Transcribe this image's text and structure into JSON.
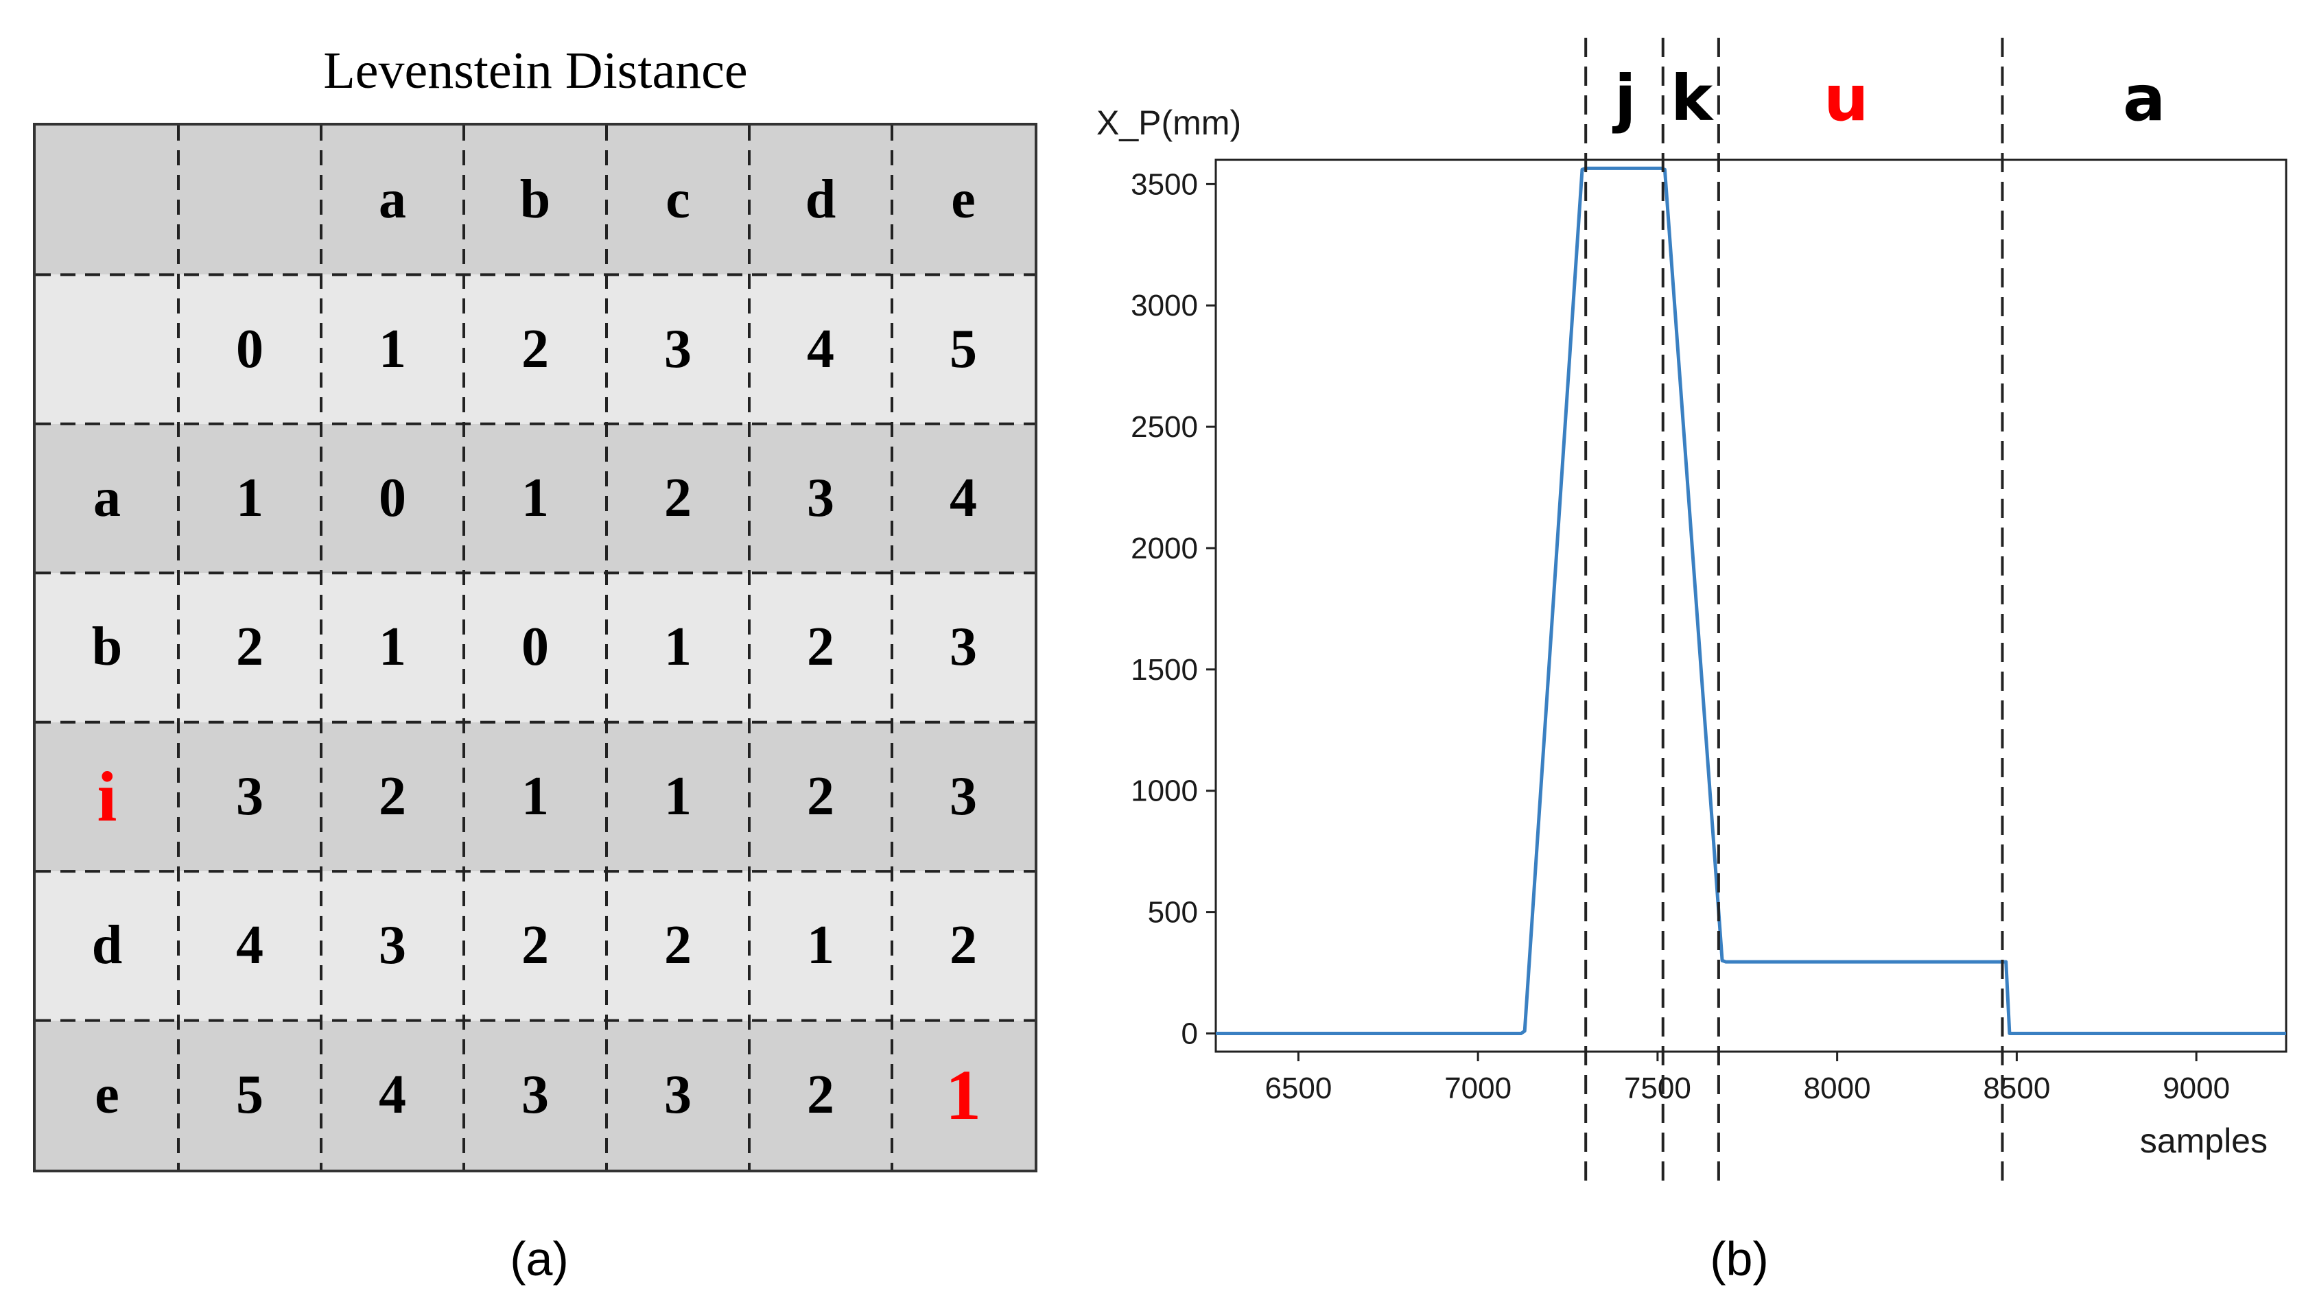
{
  "panel_a": {
    "title": "Levenstein Distance",
    "caption": "(a)",
    "header_row": [
      "",
      "",
      "a",
      "b",
      "c",
      "d",
      "e"
    ],
    "rows": [
      {
        "label": "",
        "values": [
          "0",
          "1",
          "2",
          "3",
          "4",
          "5"
        ]
      },
      {
        "label": "a",
        "values": [
          "1",
          "0",
          "1",
          "2",
          "3",
          "4"
        ]
      },
      {
        "label": "b",
        "values": [
          "2",
          "1",
          "0",
          "1",
          "2",
          "3"
        ]
      },
      {
        "label": "i",
        "values": [
          "3",
          "2",
          "1",
          "1",
          "2",
          "3"
        ]
      },
      {
        "label": "d",
        "values": [
          "4",
          "3",
          "2",
          "2",
          "1",
          "2"
        ]
      },
      {
        "label": "e",
        "values": [
          "5",
          "4",
          "3",
          "3",
          "2",
          "1"
        ]
      }
    ],
    "highlight_color": "#ff0000",
    "dark_row_color": "#d1d1d1",
    "light_row_color": "#e8e8e8"
  },
  "panel_b": {
    "caption": "(b)",
    "chart_data": {
      "type": "line",
      "xlabel": "samples",
      "ylabel": "X_P(mm)",
      "xlim": [
        6270,
        9250
      ],
      "ylim": [
        -75,
        3600
      ],
      "x_ticks": [
        6500,
        7000,
        7500,
        8000,
        8500,
        9000
      ],
      "y_ticks": [
        0,
        500,
        1000,
        1500,
        2000,
        2500,
        3000,
        3500
      ],
      "grid": false,
      "line_color": "#3a80c2",
      "series": [
        {
          "x": [
            6270,
            7120,
            7130,
            7290,
            7300,
            7510,
            7520,
            7680,
            7690,
            8470,
            8480,
            9250
          ],
          "y": [
            0,
            0,
            10,
            3560,
            3565,
            3565,
            3560,
            300,
            295,
            295,
            0,
            0
          ]
        }
      ],
      "segment_boundaries": [
        7300,
        7515,
        7670,
        8460
      ],
      "segment_labels": [
        {
          "text": "j",
          "x": 7410,
          "color": "#000000"
        },
        {
          "text": "k",
          "x": 7595,
          "color": "#000000"
        },
        {
          "text": "u",
          "x": 8025,
          "color": "#ff0000"
        },
        {
          "text": "a",
          "x": 8855,
          "color": "#000000"
        }
      ]
    }
  }
}
